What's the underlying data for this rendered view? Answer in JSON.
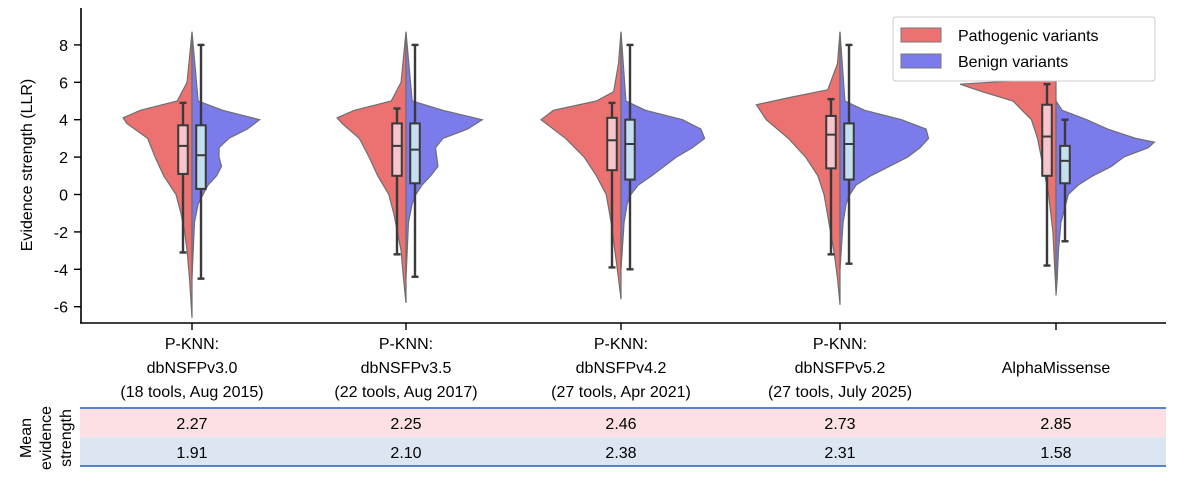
{
  "chart_data": {
    "type": "violin",
    "ylabel": "Evidence strength (LLR)",
    "ylim": [
      -7,
      10
    ],
    "yticks": [
      8,
      6,
      4,
      2,
      0,
      -2,
      -4,
      -6
    ],
    "ytick_labels": [
      "8",
      "6",
      "4",
      "2",
      "0",
      "-2",
      "-4",
      "-6"
    ],
    "legend_position": "top-right",
    "colors": {
      "pathogenic": "#ec7272",
      "benign": "#7b7bec",
      "pathogenic_box": "#f7c6cc",
      "benign_box": "#c4e0f0",
      "table_path_bg": "#fde0e4",
      "table_benign_bg": "#dce6f3",
      "table_line": "#4472c4"
    },
    "categories": [
      {
        "lines": [
          "P-KNN:",
          "dbNSFPv3.0",
          "(18 tools, Aug 2015)"
        ]
      },
      {
        "lines": [
          "P-KNN:",
          "dbNSFPv3.5",
          "(22 tools, Aug 2017)"
        ]
      },
      {
        "lines": [
          "P-KNN:",
          "dbNSFPv4.2",
          "(27 tools, Apr 2021)"
        ]
      },
      {
        "lines": [
          "P-KNN:",
          "dbNSFPv5.2",
          "(27 tools, July 2025)"
        ]
      },
      {
        "lines": [
          "AlphaMissense"
        ]
      }
    ],
    "series": [
      {
        "name": "Pathogenic variants",
        "violins": [
          {
            "profile": [
              [
                -6.6,
                0.0
              ],
              [
                -4.5,
                0.2
              ],
              [
                -3.0,
                0.4
              ],
              [
                -2.0,
                0.6
              ],
              [
                -1.0,
                0.9
              ],
              [
                0.0,
                1.3
              ],
              [
                1.0,
                2.3
              ],
              [
                2.0,
                3.0
              ],
              [
                3.0,
                3.6
              ],
              [
                3.8,
                5.3
              ],
              [
                4.1,
                5.6
              ],
              [
                4.5,
                4.2
              ],
              [
                5.0,
                1.2
              ],
              [
                6.0,
                0.4
              ],
              [
                8.7,
                0.0
              ]
            ],
            "box": {
              "q1": 1.1,
              "median": 2.6,
              "q3": 3.7,
              "whisker_low": -3.1,
              "whisker_high": 4.9
            }
          },
          {
            "profile": [
              [
                -5.8,
                0.0
              ],
              [
                -4.5,
                0.2
              ],
              [
                -3.0,
                0.4
              ],
              [
                -2.0,
                0.7
              ],
              [
                -1.0,
                1.0
              ],
              [
                0.0,
                1.4
              ],
              [
                1.0,
                2.3
              ],
              [
                2.0,
                3.0
              ],
              [
                3.0,
                3.8
              ],
              [
                3.8,
                5.2
              ],
              [
                4.1,
                5.6
              ],
              [
                4.5,
                4.2
              ],
              [
                5.0,
                1.2
              ],
              [
                6.0,
                0.4
              ],
              [
                8.7,
                0.0
              ]
            ],
            "box": {
              "q1": 1.0,
              "median": 2.6,
              "q3": 3.8,
              "whisker_low": -3.2,
              "whisker_high": 4.6
            }
          },
          {
            "profile": [
              [
                -5.6,
                0.0
              ],
              [
                -4.5,
                0.2
              ],
              [
                -3.0,
                0.5
              ],
              [
                -1.5,
                0.8
              ],
              [
                0.0,
                1.2
              ],
              [
                1.0,
                2.0
              ],
              [
                2.0,
                3.0
              ],
              [
                3.0,
                4.5
              ],
              [
                4.0,
                6.5
              ],
              [
                4.5,
                5.5
              ],
              [
                5.0,
                2.0
              ],
              [
                5.5,
                0.6
              ],
              [
                7.0,
                0.2
              ],
              [
                8.7,
                0.0
              ]
            ],
            "box": {
              "q1": 1.3,
              "median": 2.9,
              "q3": 4.1,
              "whisker_low": -3.9,
              "whisker_high": 4.9
            }
          },
          {
            "profile": [
              [
                -5.9,
                0.0
              ],
              [
                -4.5,
                0.2
              ],
              [
                -3.0,
                0.5
              ],
              [
                -1.5,
                0.9
              ],
              [
                0.0,
                1.3
              ],
              [
                1.0,
                1.8
              ],
              [
                2.0,
                2.8
              ],
              [
                3.0,
                4.2
              ],
              [
                4.0,
                6.0
              ],
              [
                4.8,
                6.8
              ],
              [
                5.2,
                4.0
              ],
              [
                5.6,
                1.0
              ],
              [
                7.0,
                0.2
              ],
              [
                8.7,
                0.0
              ]
            ],
            "box": {
              "q1": 1.4,
              "median": 3.2,
              "q3": 4.2,
              "whisker_low": -3.2,
              "whisker_high": 5.1
            }
          },
          {
            "profile": [
              [
                -5.2,
                0.0
              ],
              [
                -4.0,
                0.1
              ],
              [
                -2.0,
                0.25
              ],
              [
                0.0,
                0.6
              ],
              [
                1.0,
                0.9
              ],
              [
                2.0,
                1.2
              ],
              [
                3.0,
                1.5
              ],
              [
                4.0,
                2.0
              ],
              [
                5.0,
                3.5
              ],
              [
                5.5,
                6.0
              ],
              [
                5.9,
                7.8
              ],
              [
                6.2,
                0.3
              ],
              [
                8.0,
                0.0
              ]
            ],
            "box": {
              "q1": 1.0,
              "median": 3.1,
              "q3": 4.8,
              "whisker_low": -3.8,
              "whisker_high": 5.9
            }
          }
        ]
      },
      {
        "name": "Benign variants",
        "violins": [
          {
            "profile": [
              [
                -4.5,
                0.0
              ],
              [
                -3.0,
                0.1
              ],
              [
                -1.5,
                0.2
              ],
              [
                -0.5,
                0.5
              ],
              [
                0.0,
                0.9
              ],
              [
                0.5,
                1.3
              ],
              [
                1.0,
                2.0
              ],
              [
                1.5,
                2.4
              ],
              [
                2.0,
                2.2
              ],
              [
                2.5,
                2.2
              ],
              [
                3.0,
                3.0
              ],
              [
                3.5,
                4.5
              ],
              [
                4.0,
                5.5
              ],
              [
                4.5,
                2.5
              ],
              [
                5.0,
                0.5
              ],
              [
                8.7,
                0.0
              ]
            ],
            "box": {
              "q1": 0.3,
              "median": 2.1,
              "q3": 3.7,
              "whisker_low": -4.5,
              "whisker_high": 8.0
            }
          },
          {
            "profile": [
              [
                -4.5,
                0.0
              ],
              [
                -3.0,
                0.1
              ],
              [
                -1.5,
                0.2
              ],
              [
                -0.5,
                0.5
              ],
              [
                0.0,
                0.8
              ],
              [
                0.5,
                1.3
              ],
              [
                1.0,
                2.0
              ],
              [
                1.5,
                2.6
              ],
              [
                2.0,
                2.5
              ],
              [
                2.5,
                2.4
              ],
              [
                3.0,
                3.0
              ],
              [
                3.5,
                5.0
              ],
              [
                4.0,
                6.2
              ],
              [
                4.5,
                3.0
              ],
              [
                5.0,
                0.5
              ],
              [
                8.7,
                0.0
              ]
            ],
            "box": {
              "q1": 0.6,
              "median": 2.4,
              "q3": 3.8,
              "whisker_low": -4.4,
              "whisker_high": 8.0
            }
          },
          {
            "profile": [
              [
                -4.0,
                0.0
              ],
              [
                -3.0,
                0.1
              ],
              [
                -1.5,
                0.25
              ],
              [
                -0.5,
                0.5
              ],
              [
                0.0,
                0.8
              ],
              [
                0.5,
                1.4
              ],
              [
                1.0,
                2.5
              ],
              [
                1.5,
                3.5
              ],
              [
                2.0,
                4.5
              ],
              [
                2.5,
                5.8
              ],
              [
                3.0,
                6.8
              ],
              [
                3.5,
                6.5
              ],
              [
                4.0,
                5.0
              ],
              [
                4.5,
                2.0
              ],
              [
                5.0,
                0.4
              ],
              [
                8.7,
                0.0
              ]
            ],
            "box": {
              "q1": 0.8,
              "median": 2.7,
              "q3": 4.0,
              "whisker_low": -4.0,
              "whisker_high": 8.0
            }
          },
          {
            "profile": [
              [
                -4.0,
                0.0
              ],
              [
                -3.0,
                0.1
              ],
              [
                -1.5,
                0.25
              ],
              [
                -0.5,
                0.5
              ],
              [
                0.0,
                0.8
              ],
              [
                0.5,
                1.3
              ],
              [
                1.0,
                2.5
              ],
              [
                1.5,
                4.0
              ],
              [
                2.0,
                5.5
              ],
              [
                2.5,
                6.5
              ],
              [
                3.0,
                7.2
              ],
              [
                3.5,
                7.0
              ],
              [
                4.0,
                5.0
              ],
              [
                4.5,
                2.0
              ],
              [
                5.0,
                0.4
              ],
              [
                8.7,
                0.0
              ]
            ],
            "box": {
              "q1": 0.8,
              "median": 2.7,
              "q3": 3.8,
              "whisker_low": -3.7,
              "whisker_high": 8.0
            }
          },
          {
            "profile": [
              [
                -5.4,
                0.0
              ],
              [
                -4.5,
                0.1
              ],
              [
                -3.0,
                0.2
              ],
              [
                -1.5,
                0.4
              ],
              [
                0.0,
                1.0
              ],
              [
                0.5,
                1.8
              ],
              [
                1.0,
                3.0
              ],
              [
                1.5,
                4.5
              ],
              [
                2.0,
                5.5
              ],
              [
                2.5,
                7.5
              ],
              [
                2.8,
                8.0
              ],
              [
                3.0,
                6.5
              ],
              [
                3.5,
                4.2
              ],
              [
                4.0,
                2.5
              ],
              [
                4.5,
                0.5
              ],
              [
                5.0,
                0.0
              ]
            ],
            "box": {
              "q1": 0.6,
              "median": 1.8,
              "q3": 2.6,
              "whisker_low": -2.5,
              "whisker_high": 4.0
            }
          }
        ]
      }
    ],
    "table": {
      "row_label_lines": [
        "Mean",
        "evidence",
        "strength"
      ],
      "pathogenic_means": [
        "2.27",
        "2.25",
        "2.46",
        "2.73",
        "2.85"
      ],
      "benign_means": [
        "1.91",
        "2.10",
        "2.38",
        "2.31",
        "1.58"
      ]
    }
  }
}
